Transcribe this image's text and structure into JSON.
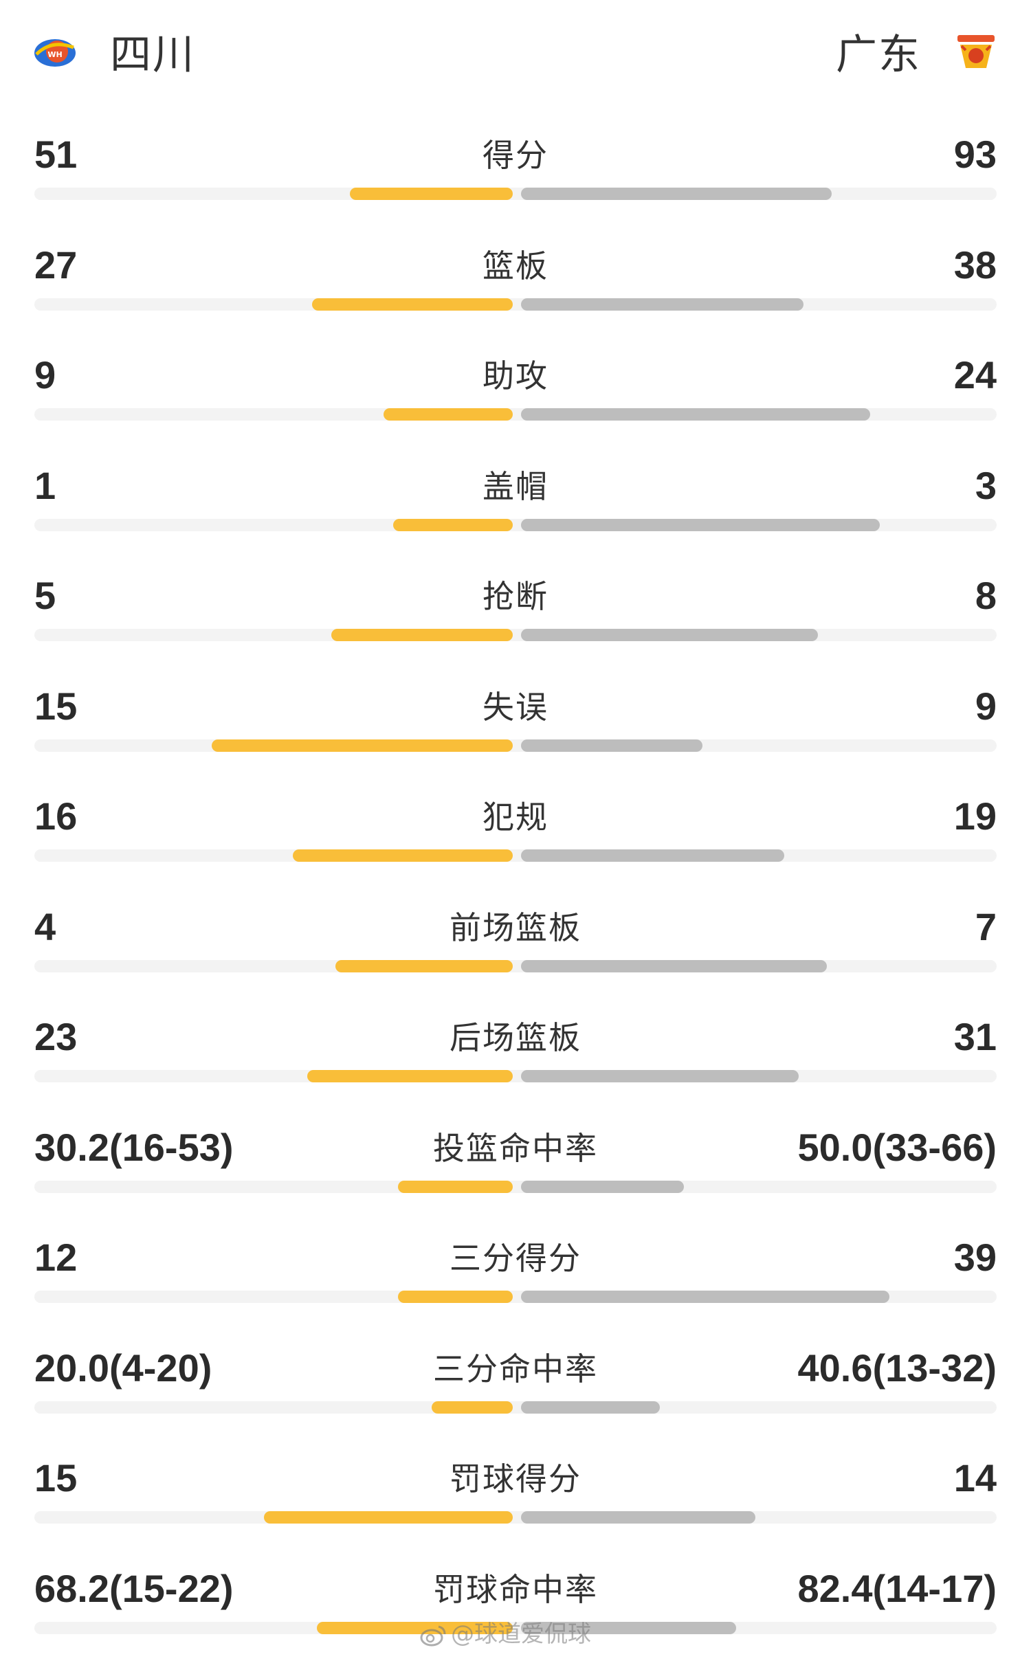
{
  "teams": {
    "home": {
      "name": "四川",
      "logo": "sichuan-logo",
      "color": "#f9be39"
    },
    "away": {
      "name": "广东",
      "logo": "guangdong-logo",
      "color": "#bdbdbd"
    }
  },
  "stats": [
    {
      "label": "得分",
      "home": "51",
      "away": "93",
      "home_bar": 0.34,
      "away_bar": 0.65
    },
    {
      "label": "篮板",
      "home": "27",
      "away": "38",
      "home_bar": 0.42,
      "away_bar": 0.59
    },
    {
      "label": "助攻",
      "home": "9",
      "away": "24",
      "home_bar": 0.27,
      "away_bar": 0.73
    },
    {
      "label": "盖帽",
      "home": "1",
      "away": "3",
      "home_bar": 0.25,
      "away_bar": 0.75
    },
    {
      "label": "抢断",
      "home": "5",
      "away": "8",
      "home_bar": 0.38,
      "away_bar": 0.62
    },
    {
      "label": "失误",
      "home": "15",
      "away": "9",
      "home_bar": 0.63,
      "away_bar": 0.38
    },
    {
      "label": "犯规",
      "home": "16",
      "away": "19",
      "home_bar": 0.46,
      "away_bar": 0.55
    },
    {
      "label": "前场篮板",
      "home": "4",
      "away": "7",
      "home_bar": 0.37,
      "away_bar": 0.64
    },
    {
      "label": "后场篮板",
      "home": "23",
      "away": "31",
      "home_bar": 0.43,
      "away_bar": 0.58
    },
    {
      "label": "投篮命中率",
      "home": "30.2(16-53)",
      "away": "50.0(33-66)",
      "home_bar": 0.24,
      "away_bar": 0.34
    },
    {
      "label": "三分得分",
      "home": "12",
      "away": "39",
      "home_bar": 0.24,
      "away_bar": 0.77
    },
    {
      "label": "三分命中率",
      "home": "20.0(4-20)",
      "away": "40.6(13-32)",
      "home_bar": 0.17,
      "away_bar": 0.29
    },
    {
      "label": "罚球得分",
      "home": "15",
      "away": "14",
      "home_bar": 0.52,
      "away_bar": 0.49
    },
    {
      "label": "罚球命中率",
      "home": "68.2(15-22)",
      "away": "82.4(14-17)",
      "home_bar": 0.41,
      "away_bar": 0.45
    }
  ],
  "watermark": "@球道爱侃球"
}
